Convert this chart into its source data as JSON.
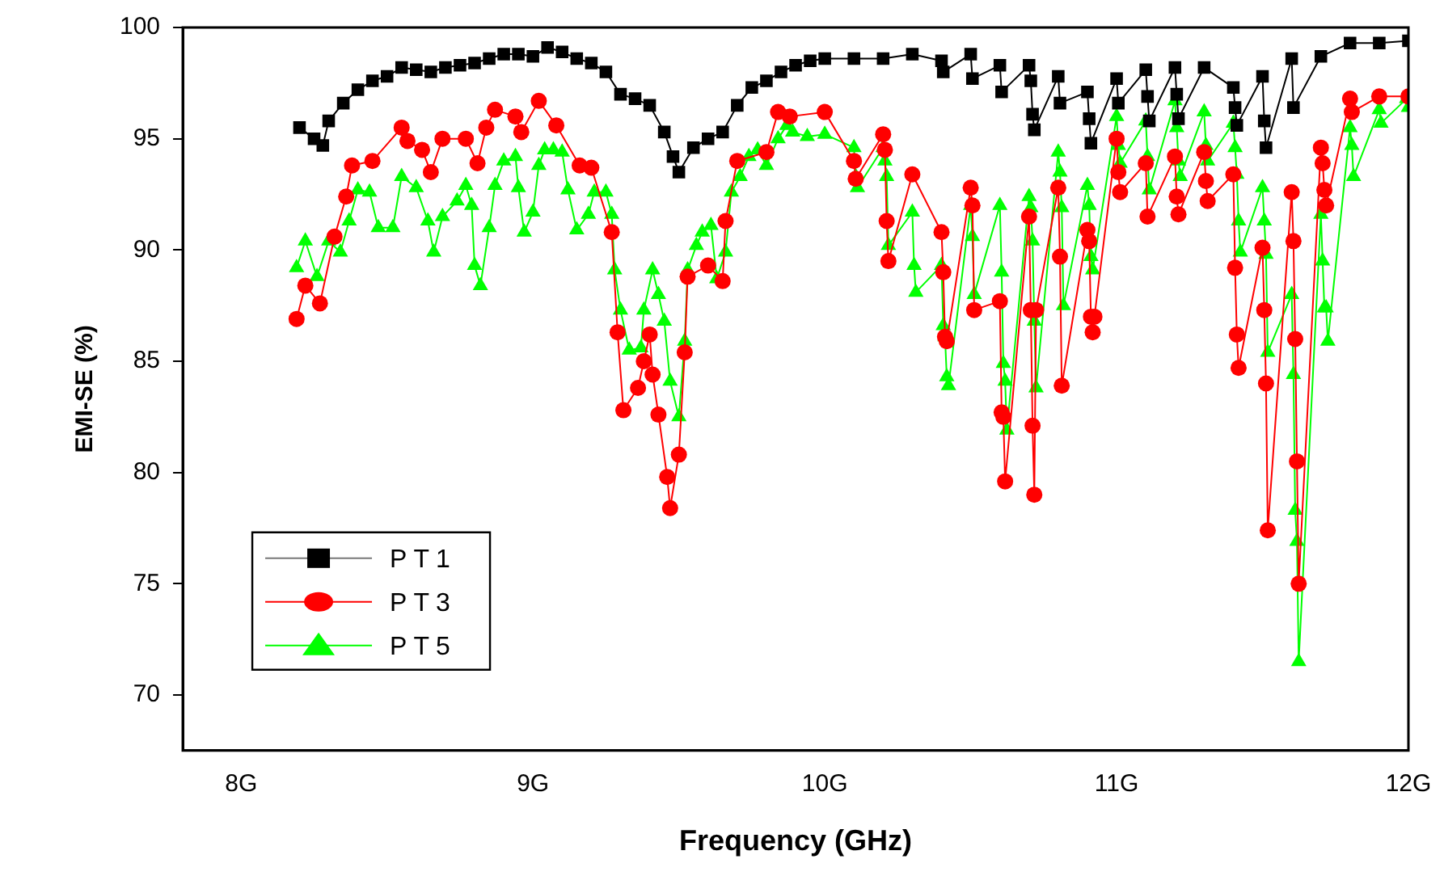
{
  "chart_data": {
    "type": "line",
    "xlabel": "Frequency (GHz)",
    "ylabel": "EMI-SE (%)",
    "xlim": [
      7.8,
      12
    ],
    "ylim": [
      67.5,
      100
    ],
    "xticks": [
      {
        "value": 8,
        "label": "8G"
      },
      {
        "value": 9,
        "label": "9G"
      },
      {
        "value": 10,
        "label": "10G"
      },
      {
        "value": 11,
        "label": "11G"
      },
      {
        "value": 12,
        "label": "12G"
      }
    ],
    "yticks": [
      70,
      75,
      80,
      85,
      90,
      95,
      100
    ],
    "grid": false,
    "legend": "bottom left",
    "line_style": "solid",
    "series": [
      {
        "name": "PT1",
        "color": "#000000",
        "marker": "square",
        "x": [
          8.2,
          8.25,
          8.28,
          8.3,
          8.35,
          8.4,
          8.45,
          8.5,
          8.55,
          8.6,
          8.65,
          8.7,
          8.75,
          8.8,
          8.85,
          8.9,
          8.95,
          9.0,
          9.05,
          9.1,
          9.15,
          9.2,
          9.25,
          9.3,
          9.35,
          9.4,
          9.45,
          9.48,
          9.5,
          9.55,
          9.6,
          9.65,
          9.7,
          9.75,
          9.8,
          9.85,
          9.9,
          9.95,
          10.0,
          10.1,
          10.2,
          10.3,
          10.4,
          10.406,
          10.5,
          10.506,
          10.6,
          10.606,
          10.7,
          10.706,
          10.712,
          10.718,
          10.8,
          10.806,
          10.9,
          10.906,
          10.912,
          11.0,
          11.006,
          11.1,
          11.106,
          11.112,
          11.2,
          11.206,
          11.212,
          11.3,
          11.4,
          11.406,
          11.412,
          11.5,
          11.506,
          11.512,
          11.6,
          11.606,
          11.7,
          11.8,
          11.9,
          12.0
        ],
        "values": [
          95.5,
          95,
          94.7,
          95.8,
          96.6,
          97.2,
          97.6,
          97.8,
          98.2,
          98.1,
          98,
          98.2,
          98.3,
          98.4,
          98.6,
          98.8,
          98.8,
          98.7,
          99.1,
          98.9,
          98.6,
          98.4,
          98,
          97,
          96.8,
          96.5,
          95.3,
          94.2,
          93.5,
          94.6,
          95,
          95.3,
          96.5,
          97.3,
          97.6,
          98,
          98.3,
          98.5,
          98.6,
          98.6,
          98.6,
          98.8,
          98.5,
          98,
          98.8,
          97.7,
          98.3,
          97.1,
          98.3,
          97.6,
          96.1,
          95.4,
          97.8,
          96.6,
          97.1,
          95.9,
          94.8,
          97.7,
          96.6,
          98.1,
          96.9,
          95.8,
          98.2,
          97,
          95.9,
          98.2,
          97.3,
          96.4,
          95.6,
          97.8,
          95.8,
          94.6,
          98.6,
          96.4,
          98.7,
          99.3,
          99.3,
          99.4
        ]
      },
      {
        "name": "PT3",
        "color": "#ff0000",
        "marker": "circle",
        "x": [
          8.19,
          8.22,
          8.27,
          8.32,
          8.36,
          8.38,
          8.45,
          8.55,
          8.57,
          8.62,
          8.65,
          8.69,
          8.77,
          8.81,
          8.84,
          8.87,
          8.94,
          8.96,
          9.02,
          9.08,
          9.16,
          9.2,
          9.27,
          9.29,
          9.31,
          9.36,
          9.38,
          9.4,
          9.41,
          9.43,
          9.46,
          9.47,
          9.5,
          9.52,
          9.53,
          9.6,
          9.65,
          9.66,
          9.7,
          9.8,
          9.84,
          9.88,
          10.0,
          10.1,
          10.106,
          10.2,
          10.206,
          10.212,
          10.218,
          10.3,
          10.4,
          10.406,
          10.412,
          10.418,
          10.5,
          10.506,
          10.512,
          10.6,
          10.606,
          10.612,
          10.618,
          10.7,
          10.706,
          10.712,
          10.718,
          10.724,
          10.8,
          10.806,
          10.812,
          10.9,
          10.906,
          10.912,
          10.918,
          10.924,
          11.0,
          11.006,
          11.012,
          11.1,
          11.106,
          11.2,
          11.206,
          11.212,
          11.3,
          11.306,
          11.312,
          11.4,
          11.406,
          11.412,
          11.418,
          11.5,
          11.506,
          11.512,
          11.518,
          11.6,
          11.606,
          11.612,
          11.618,
          11.624,
          11.7,
          11.706,
          11.712,
          11.718,
          11.8,
          11.806,
          11.9,
          12.0
        ],
        "values": [
          86.9,
          88.4,
          87.6,
          90.6,
          92.4,
          93.8,
          94,
          95.5,
          94.9,
          94.5,
          93.5,
          95,
          95,
          93.9,
          95.5,
          96.3,
          96,
          95.3,
          96.7,
          95.6,
          93.8,
          93.7,
          90.8,
          86.3,
          82.8,
          83.8,
          85,
          86.2,
          84.4,
          82.6,
          79.8,
          78.4,
          80.8,
          85.4,
          88.8,
          89.3,
          88.6,
          91.3,
          94,
          94.4,
          96.2,
          96,
          96.2,
          94,
          93.2,
          95.2,
          94.5,
          91.3,
          89.5,
          93.4,
          90.8,
          89,
          86.1,
          85.9,
          92.8,
          92,
          87.3,
          87.7,
          82.7,
          82.5,
          79.6,
          91.5,
          87.3,
          82.1,
          79,
          87.3,
          92.8,
          89.7,
          83.9,
          90.9,
          90.4,
          87,
          86.3,
          87,
          95,
          93.5,
          92.6,
          93.9,
          91.5,
          94.2,
          92.4,
          91.6,
          94.4,
          93.1,
          92.2,
          93.4,
          89.2,
          86.2,
          84.7,
          90.1,
          87.3,
          84,
          77.4,
          92.6,
          90.4,
          86,
          80.5,
          75,
          94.6,
          93.9,
          92.7,
          92,
          96.8,
          96.2,
          96.9,
          96.9
        ]
      },
      {
        "name": "PT5",
        "color": "#00ff00",
        "marker": "triangle",
        "x": [
          8.19,
          8.22,
          8.26,
          8.3,
          8.34,
          8.37,
          8.4,
          8.44,
          8.47,
          8.52,
          8.55,
          8.6,
          8.64,
          8.66,
          8.69,
          8.74,
          8.77,
          8.79,
          8.8,
          8.82,
          8.85,
          8.87,
          8.9,
          8.94,
          8.95,
          8.97,
          9.0,
          9.02,
          9.04,
          9.07,
          9.1,
          9.12,
          9.15,
          9.19,
          9.21,
          9.25,
          9.27,
          9.28,
          9.3,
          9.33,
          9.37,
          9.38,
          9.41,
          9.43,
          9.45,
          9.47,
          9.5,
          9.52,
          9.53,
          9.56,
          9.58,
          9.61,
          9.63,
          9.66,
          9.68,
          9.71,
          9.74,
          9.77,
          9.8,
          9.84,
          9.87,
          9.89,
          9.94,
          10.0,
          10.1,
          10.106,
          10.112,
          10.2,
          10.206,
          10.212,
          10.218,
          10.3,
          10.306,
          10.312,
          10.4,
          10.406,
          10.412,
          10.418,
          10.424,
          10.5,
          10.506,
          10.512,
          10.6,
          10.606,
          10.612,
          10.618,
          10.624,
          10.7,
          10.706,
          10.712,
          10.718,
          10.724,
          10.8,
          10.806,
          10.812,
          10.818,
          10.9,
          10.906,
          10.912,
          10.918,
          11.0,
          11.006,
          11.012,
          11.1,
          11.106,
          11.112,
          11.2,
          11.206,
          11.212,
          11.218,
          11.3,
          11.306,
          11.312,
          11.4,
          11.406,
          11.412,
          11.418,
          11.424,
          11.5,
          11.506,
          11.512,
          11.518,
          11.6,
          11.606,
          11.612,
          11.618,
          11.624,
          11.7,
          11.706,
          11.712,
          11.718,
          11.724,
          11.8,
          11.806,
          11.812,
          11.9,
          11.906,
          11.994,
          12.0
        ],
        "values": [
          89.2,
          90.4,
          88.8,
          90.4,
          89.9,
          91.3,
          92.7,
          92.6,
          91,
          91,
          93.3,
          92.8,
          91.3,
          89.9,
          91.5,
          92.2,
          92.9,
          92,
          89.3,
          88.4,
          91,
          92.9,
          94,
          94.2,
          92.8,
          90.8,
          91.7,
          93.8,
          94.5,
          94.5,
          94.4,
          92.7,
          90.9,
          91.6,
          92.6,
          92.6,
          91.6,
          89.1,
          87.3,
          85.5,
          85.6,
          87.3,
          89.1,
          88,
          86.8,
          84.1,
          82.5,
          85.9,
          89.1,
          90.2,
          90.8,
          91.1,
          88.7,
          89.9,
          92.6,
          93.3,
          94.2,
          94.5,
          93.8,
          95,
          95.6,
          95.3,
          95.1,
          95.2,
          94.6,
          93.3,
          92.8,
          94.6,
          94,
          93.3,
          90.2,
          91.7,
          89.3,
          88.1,
          89.3,
          86.6,
          86.1,
          84.3,
          83.9,
          92,
          90.6,
          88,
          92,
          89,
          84.9,
          84.1,
          81.9,
          92.4,
          91.9,
          90.4,
          86.8,
          83.8,
          94.4,
          93.5,
          91.9,
          87.5,
          92.9,
          92,
          89.7,
          89.1,
          96,
          94.7,
          93.9,
          95.8,
          94.2,
          92.7,
          96.7,
          95.5,
          94,
          93.3,
          96.2,
          94.7,
          94,
          95.7,
          94.6,
          93.4,
          91.3,
          89.9,
          92.8,
          91.3,
          89.8,
          85.4,
          88,
          84.4,
          78.3,
          76.9,
          71.5,
          91.6,
          89.5,
          87.4,
          87.4,
          85.9,
          95.5,
          94.7,
          93.3,
          96.3,
          95.7,
          96.8,
          96.4
        ]
      }
    ]
  }
}
